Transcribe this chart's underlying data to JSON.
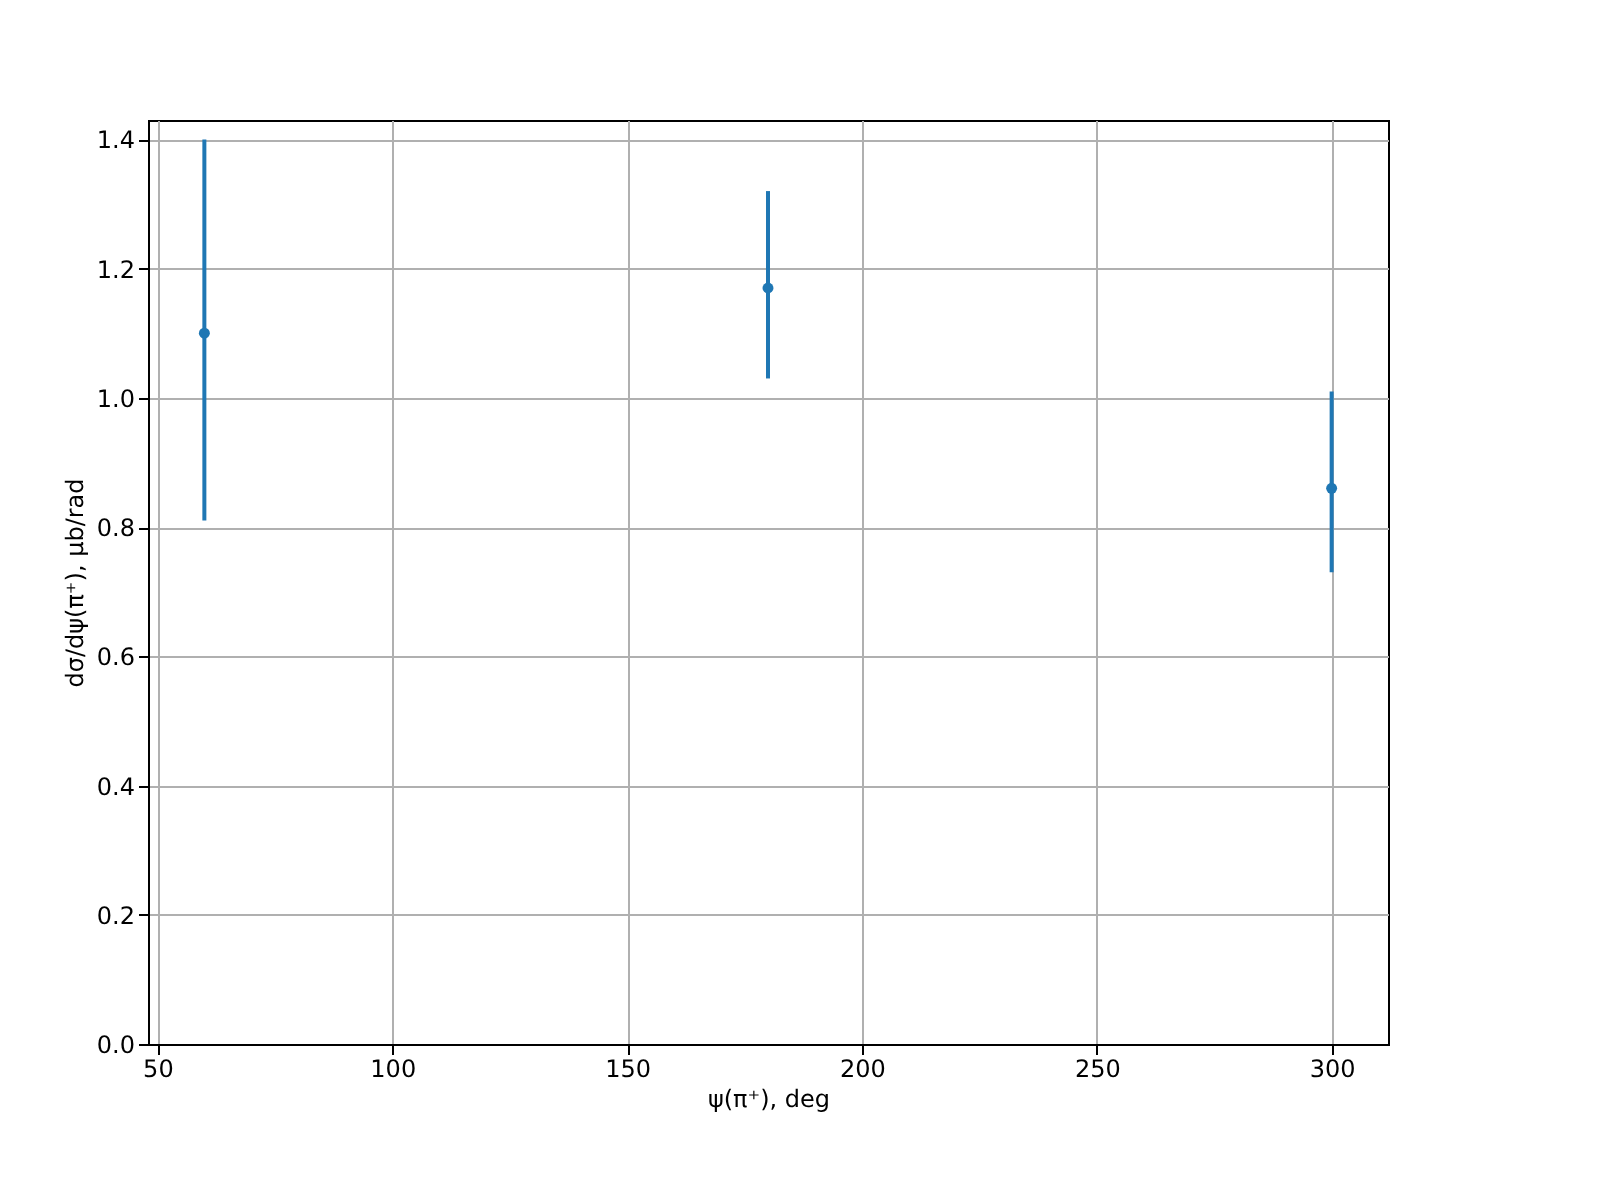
{
  "chart_data": {
    "type": "scatter",
    "xlabel": "ψ(π⁺), deg",
    "ylabel": "dσ/dψ(π⁺), μb/rad",
    "x": [
      60,
      180,
      300
    ],
    "series": [
      {
        "color": "#1f77b4",
        "values": [
          1.1,
          1.17,
          0.86
        ],
        "errors": [
          [
            0.81,
            1.4
          ],
          [
            1.03,
            1.32
          ],
          [
            0.73,
            1.01
          ]
        ]
      }
    ],
    "xlim": [
      48,
      312
    ],
    "xticks": [
      50,
      100,
      150,
      200,
      250,
      300
    ],
    "ylim": [
      0,
      1.43
    ],
    "yticks": [
      {
        "value": 0,
        "label": "0.0"
      },
      0.2,
      0.4,
      0.6,
      0.8,
      {
        "value": 1,
        "label": "1.0"
      },
      1.2,
      1.4
    ],
    "grid": true,
    "marker": "circle"
  }
}
